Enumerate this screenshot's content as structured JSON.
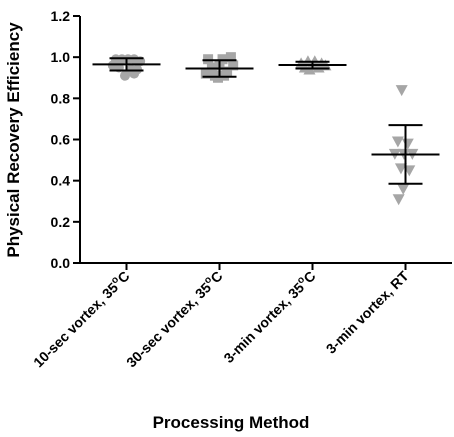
{
  "chart_data": {
    "type": "scatter",
    "title": "",
    "ylabel": "Physical Recovery Efficiency",
    "xlabel": "Processing Method",
    "ylim": [
      0,
      1.2
    ],
    "yticks": [
      "0.0",
      "0.2",
      "0.4",
      "0.6",
      "0.8",
      "1.0",
      "1.2"
    ],
    "ytick_values": [
      0,
      0.2,
      0.4,
      0.6,
      0.8,
      1.0,
      1.2
    ],
    "grid": false,
    "point_color": "#a6a6a6",
    "line_color": "#000000",
    "categories": [
      {
        "label_main": "10-sec vortex, 35",
        "label_sup": "o",
        "label_end": "C"
      },
      {
        "label_main": "30-sec vortex, 35",
        "label_sup": "o",
        "label_end": "C"
      },
      {
        "label_main": "3-min vortex, 35",
        "label_sup": "o",
        "label_end": "C"
      },
      {
        "label_main": "3-min vortex, RT",
        "label_sup": "",
        "label_end": ""
      }
    ],
    "series": [
      {
        "marker": "circle",
        "mean": 0.965,
        "sd_low": 0.935,
        "sd_high": 0.995,
        "points": [
          {
            "dx": -0.28,
            "y": 0.99
          },
          {
            "dx": -0.12,
            "y": 0.99
          },
          {
            "dx": 0.04,
            "y": 0.99
          },
          {
            "dx": 0.2,
            "y": 0.99
          },
          {
            "dx": 0.36,
            "y": 0.98
          },
          {
            "dx": -0.36,
            "y": 0.96
          },
          {
            "dx": -0.2,
            "y": 0.95
          },
          {
            "dx": 0.12,
            "y": 0.94
          },
          {
            "dx": 0.28,
            "y": 0.94
          },
          {
            "dx": -0.04,
            "y": 0.91
          },
          {
            "dx": 0.2,
            "y": 0.92
          }
        ]
      },
      {
        "marker": "square",
        "mean": 0.945,
        "sd_low": 0.905,
        "sd_high": 0.985,
        "points": [
          {
            "dx": -0.3,
            "y": 0.99
          },
          {
            "dx": 0.08,
            "y": 0.99
          },
          {
            "dx": 0.3,
            "y": 1.0
          },
          {
            "dx": -0.2,
            "y": 0.95
          },
          {
            "dx": 0.0,
            "y": 0.96
          },
          {
            "dx": 0.36,
            "y": 0.96
          },
          {
            "dx": -0.36,
            "y": 0.92
          },
          {
            "dx": -0.12,
            "y": 0.91
          },
          {
            "dx": 0.12,
            "y": 0.91
          },
          {
            "dx": 0.2,
            "y": 0.93
          },
          {
            "dx": -0.04,
            "y": 0.9
          }
        ]
      },
      {
        "marker": "triangle-up",
        "mean": 0.962,
        "sd_low": 0.945,
        "sd_high": 0.978,
        "points": [
          {
            "dx": -0.3,
            "y": 0.97
          },
          {
            "dx": -0.12,
            "y": 0.98
          },
          {
            "dx": 0.06,
            "y": 0.98
          },
          {
            "dx": 0.24,
            "y": 0.97
          },
          {
            "dx": -0.2,
            "y": 0.95
          },
          {
            "dx": 0.0,
            "y": 0.96
          },
          {
            "dx": 0.16,
            "y": 0.95
          },
          {
            "dx": 0.34,
            "y": 0.96
          },
          {
            "dx": -0.08,
            "y": 0.94
          }
        ]
      },
      {
        "marker": "triangle-down",
        "mean": 0.527,
        "sd_low": 0.385,
        "sd_high": 0.67,
        "points": [
          {
            "dx": -0.1,
            "y": 0.84
          },
          {
            "dx": -0.2,
            "y": 0.59
          },
          {
            "dx": 0.06,
            "y": 0.58
          },
          {
            "dx": -0.28,
            "y": 0.53
          },
          {
            "dx": -0.04,
            "y": 0.53
          },
          {
            "dx": 0.18,
            "y": 0.53
          },
          {
            "dx": -0.12,
            "y": 0.46
          },
          {
            "dx": 0.1,
            "y": 0.45
          },
          {
            "dx": -0.06,
            "y": 0.36
          },
          {
            "dx": -0.18,
            "y": 0.31
          }
        ]
      }
    ]
  }
}
